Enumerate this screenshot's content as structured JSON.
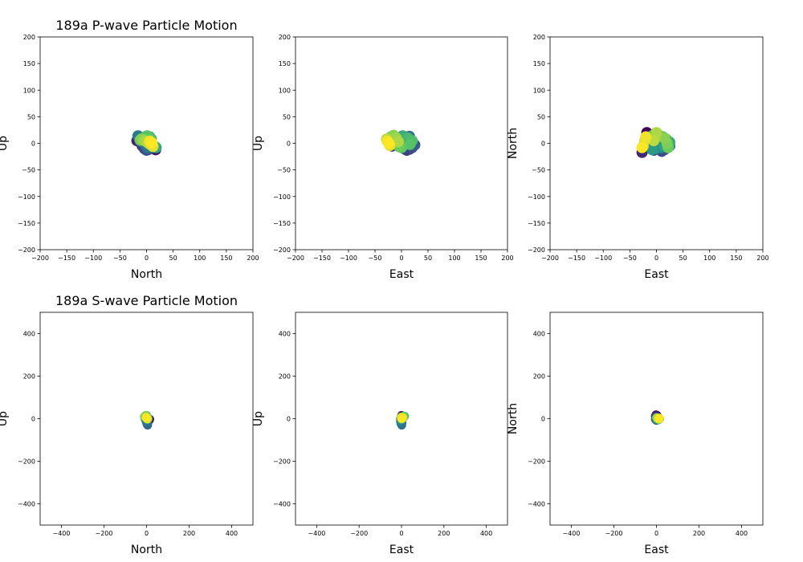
{
  "figure": {
    "background": "#ffffff",
    "colormap": [
      "#440154",
      "#3b528b",
      "#21918c",
      "#5ec962",
      "#fde725"
    ]
  },
  "chart_data": [
    {
      "type": "scatter",
      "title": "189a P-wave Particle Motion",
      "xlabel": "North",
      "ylabel": "Up",
      "xlim": [
        -200,
        200
      ],
      "ylim": [
        -200,
        200
      ],
      "xticks": [
        -200,
        -150,
        -100,
        -50,
        0,
        50,
        100,
        150,
        200
      ],
      "yticks": [
        -200,
        -150,
        -100,
        -50,
        0,
        50,
        100,
        150,
        200
      ],
      "grid": false,
      "points": [
        [
          12,
          -8
        ],
        [
          15,
          -10
        ],
        [
          17,
          -12
        ],
        [
          14,
          -9
        ],
        [
          -18,
          5
        ],
        [
          -15,
          8
        ],
        [
          -12,
          2
        ],
        [
          -8,
          -5
        ],
        [
          -4,
          -10
        ],
        [
          0,
          -13
        ],
        [
          3,
          -12
        ],
        [
          -14,
          10
        ],
        [
          -10,
          6
        ],
        [
          -6,
          1
        ],
        [
          -2,
          -4
        ],
        [
          2,
          -8
        ],
        [
          -16,
          14
        ],
        [
          -5,
          8
        ],
        [
          0,
          6
        ],
        [
          4,
          3
        ],
        [
          8,
          0
        ],
        [
          12,
          -3
        ],
        [
          15,
          -6
        ],
        [
          18,
          -8
        ],
        [
          3,
          10
        ],
        [
          6,
          12
        ],
        [
          9,
          8
        ],
        [
          -3,
          12
        ],
        [
          1,
          14
        ],
        [
          5,
          9
        ],
        [
          -12,
          6
        ],
        [
          -10,
          8
        ],
        [
          -7,
          7
        ],
        [
          -4,
          5
        ],
        [
          0,
          3
        ],
        [
          4,
          0
        ],
        [
          8,
          -3
        ],
        [
          12,
          -6
        ],
        [
          6,
          4
        ],
        [
          10,
          1
        ]
      ]
    },
    {
      "type": "scatter",
      "title": "",
      "xlabel": "East",
      "ylabel": "Up",
      "xlim": [
        -200,
        200
      ],
      "ylim": [
        -200,
        200
      ],
      "xticks": [
        -200,
        -150,
        -100,
        -50,
        0,
        50,
        100,
        150,
        200
      ],
      "yticks": [
        -200,
        -150,
        -100,
        -50,
        0,
        50,
        100,
        150,
        200
      ],
      "grid": false,
      "points": [
        [
          -25,
          5
        ],
        [
          -20,
          0
        ],
        [
          -15,
          -3
        ],
        [
          -12,
          8
        ],
        [
          -18,
          -5
        ],
        [
          -10,
          2
        ],
        [
          5,
          -10
        ],
        [
          10,
          -13
        ],
        [
          15,
          -11
        ],
        [
          20,
          -8
        ],
        [
          22,
          -5
        ],
        [
          25,
          -3
        ],
        [
          5,
          10
        ],
        [
          10,
          12
        ],
        [
          15,
          13
        ],
        [
          -3,
          5
        ],
        [
          0,
          0
        ],
        [
          3,
          -5
        ],
        [
          12,
          5
        ],
        [
          18,
          3
        ],
        [
          -22,
          -2
        ],
        [
          -16,
          6
        ],
        [
          -8,
          4
        ],
        [
          -2,
          10
        ],
        [
          2,
          14
        ],
        [
          7,
          9
        ],
        [
          12,
          10
        ],
        [
          20,
          5
        ],
        [
          16,
          -2
        ],
        [
          0,
          -8
        ],
        [
          -5,
          -6
        ],
        [
          -20,
          12
        ],
        [
          -15,
          15
        ],
        [
          -10,
          10
        ],
        [
          -6,
          3
        ],
        [
          -28,
          8
        ],
        [
          -25,
          2
        ],
        [
          -22,
          -4
        ],
        [
          -27,
          4
        ],
        [
          -24,
          0
        ]
      ]
    },
    {
      "type": "scatter",
      "title": "",
      "xlabel": "East",
      "ylabel": "North",
      "xlim": [
        -200,
        200
      ],
      "ylim": [
        -200,
        200
      ],
      "xticks": [
        -200,
        -150,
        -100,
        -50,
        0,
        50,
        100,
        150,
        200
      ],
      "yticks": [
        -200,
        -150,
        -100,
        -50,
        0,
        50,
        100,
        150,
        200
      ],
      "grid": false,
      "points": [
        [
          -18,
          20
        ],
        [
          -15,
          15
        ],
        [
          -20,
          10
        ],
        [
          -22,
          0
        ],
        [
          -25,
          -10
        ],
        [
          -27,
          -17
        ],
        [
          -12,
          -8
        ],
        [
          -5,
          -13
        ],
        [
          5,
          -10
        ],
        [
          10,
          -15
        ],
        [
          15,
          -12
        ],
        [
          20,
          -8
        ],
        [
          -10,
          5
        ],
        [
          -5,
          0
        ],
        [
          0,
          -5
        ],
        [
          10,
          0
        ],
        [
          15,
          5
        ],
        [
          22,
          3
        ],
        [
          25,
          -5
        ],
        [
          8,
          -8
        ],
        [
          -2,
          -10
        ],
        [
          -8,
          -12
        ],
        [
          15,
          -5
        ],
        [
          20,
          -2
        ],
        [
          25,
          2
        ],
        [
          18,
          8
        ],
        [
          12,
          12
        ],
        [
          5,
          15
        ],
        [
          -3,
          18
        ],
        [
          -8,
          14
        ],
        [
          22,
          -8
        ],
        [
          20,
          0
        ],
        [
          15,
          10
        ],
        [
          -2,
          10
        ],
        [
          0,
          20
        ],
        [
          -5,
          5
        ],
        [
          -25,
          -5
        ],
        [
          -22,
          5
        ],
        [
          -20,
          12
        ],
        [
          -27,
          -8
        ]
      ]
    },
    {
      "type": "scatter",
      "title": "189a S-wave Particle Motion",
      "xlabel": "North",
      "ylabel": "Up",
      "xlim": [
        -500,
        500
      ],
      "ylim": [
        -500,
        500
      ],
      "xticks": [
        -400,
        -200,
        0,
        200,
        400
      ],
      "yticks": [
        -400,
        -200,
        0,
        200,
        400
      ],
      "grid": false,
      "points": [
        [
          10,
          -5
        ],
        [
          15,
          -3
        ],
        [
          12,
          -8
        ],
        [
          8,
          -2
        ],
        [
          3,
          -10
        ],
        [
          0,
          -18
        ],
        [
          2,
          -25
        ],
        [
          5,
          -30
        ],
        [
          3,
          -22
        ],
        [
          -2,
          -12
        ],
        [
          -5,
          -5
        ],
        [
          -8,
          2
        ],
        [
          -6,
          8
        ],
        [
          -3,
          12
        ],
        [
          0,
          15
        ],
        [
          3,
          10
        ],
        [
          5,
          5
        ],
        [
          7,
          0
        ],
        [
          -10,
          10
        ],
        [
          -5,
          15
        ],
        [
          0,
          8
        ],
        [
          2,
          3
        ],
        [
          4,
          -2
        ],
        [
          -2,
          5
        ]
      ]
    },
    {
      "type": "scatter",
      "title": "",
      "xlabel": "East",
      "ylabel": "Up",
      "xlim": [
        -500,
        500
      ],
      "ylim": [
        -500,
        500
      ],
      "xticks": [
        -400,
        -200,
        0,
        200,
        400
      ],
      "yticks": [
        -400,
        -200,
        0,
        200,
        400
      ],
      "grid": false,
      "points": [
        [
          0,
          15
        ],
        [
          3,
          10
        ],
        [
          -2,
          5
        ],
        [
          -4,
          0
        ],
        [
          -3,
          -5
        ],
        [
          0,
          -10
        ],
        [
          2,
          -18
        ],
        [
          -1,
          -25
        ],
        [
          1,
          -30
        ],
        [
          -3,
          -22
        ],
        [
          -5,
          -12
        ],
        [
          2,
          -3
        ],
        [
          4,
          5
        ],
        [
          6,
          2
        ],
        [
          8,
          8
        ],
        [
          10,
          12
        ],
        [
          12,
          10
        ],
        [
          15,
          12
        ],
        [
          5,
          0
        ],
        [
          0,
          -2
        ],
        [
          -2,
          8
        ],
        [
          3,
          4
        ],
        [
          6,
          6
        ],
        [
          1,
          2
        ]
      ]
    },
    {
      "type": "scatter",
      "title": "",
      "xlabel": "East",
      "ylabel": "North",
      "xlim": [
        -500,
        500
      ],
      "ylim": [
        -500,
        500
      ],
      "xticks": [
        -400,
        -200,
        0,
        200,
        400
      ],
      "yticks": [
        -400,
        -200,
        0,
        200,
        400
      ],
      "grid": false,
      "points": [
        [
          -2,
          18
        ],
        [
          3,
          15
        ],
        [
          0,
          10
        ],
        [
          -5,
          12
        ],
        [
          2,
          8
        ],
        [
          5,
          5
        ],
        [
          -3,
          0
        ],
        [
          -5,
          -3
        ],
        [
          0,
          -8
        ],
        [
          3,
          -5
        ],
        [
          6,
          -3
        ],
        [
          8,
          0
        ],
        [
          10,
          2
        ],
        [
          12,
          3
        ],
        [
          15,
          0
        ],
        [
          10,
          -5
        ],
        [
          5,
          -2
        ],
        [
          2,
          0
        ],
        [
          0,
          5
        ],
        [
          4,
          2
        ],
        [
          6,
          4
        ],
        [
          8,
          1
        ],
        [
          12,
          -2
        ],
        [
          14,
          2
        ]
      ]
    }
  ]
}
